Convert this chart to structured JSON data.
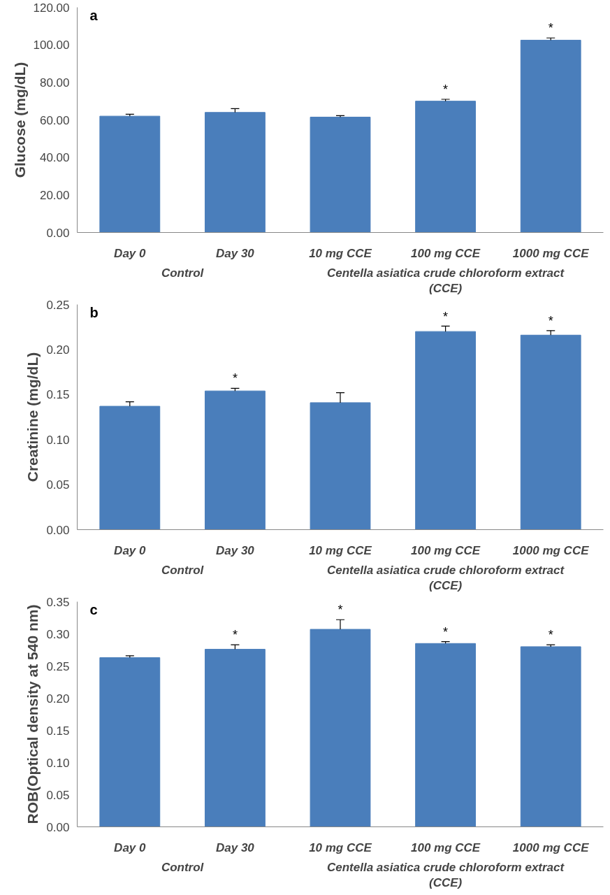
{
  "chart_data": [
    {
      "type": "bar",
      "title": "a",
      "ylabel": "Glucose (mg/dL)",
      "categories": [
        "Day 0",
        "Day 30",
        "10 mg CCE",
        "100 mg CCE",
        "1000 mg CCE"
      ],
      "values": [
        62,
        64,
        61.5,
        70,
        102.5
      ],
      "color": "#4a7ebb",
      "errors": [
        [
          62,
          63
        ],
        [
          64,
          66
        ],
        [
          61.5,
          62.3
        ],
        [
          70,
          71
        ],
        [
          102.5,
          103.7
        ]
      ],
      "ylim": [
        0,
        120
      ],
      "yticks": [
        {
          "value": 0,
          "label": "0.00"
        },
        {
          "value": 20,
          "label": "20.00"
        },
        {
          "value": 40,
          "label": "40.00"
        },
        {
          "value": 60,
          "label": "60.00"
        },
        {
          "value": 80,
          "label": "80.00"
        },
        {
          "value": 100,
          "label": "100.00"
        },
        {
          "value": 120,
          "label": "120.00"
        }
      ],
      "annotations": [
        {
          "text": "*",
          "x": "100 mg CCE",
          "y": 71
        },
        {
          "text": "*",
          "x": "1000 mg CCE",
          "y": 103.7
        },
        "Control",
        "Centella asiatica crude chloroform extract (CCE)"
      ]
    },
    {
      "type": "bar",
      "title": "b",
      "ylabel": "Creatinine (mg/dL)",
      "categories": [
        "Day 0",
        "Day 30",
        "10 mg CCE",
        "100 mg CCE",
        "1000 mg CCE"
      ],
      "values": [
        0.137,
        0.154,
        0.141,
        0.22,
        0.216
      ],
      "color": "#4a7ebb",
      "errors": [
        [
          0.137,
          0.142
        ],
        [
          0.154,
          0.157
        ],
        [
          0.141,
          0.152
        ],
        [
          0.22,
          0.226
        ],
        [
          0.216,
          0.221
        ]
      ],
      "ylim": [
        0,
        0.25
      ],
      "yticks": [
        {
          "value": 0,
          "label": "0.00"
        },
        {
          "value": 0.05,
          "label": "0.05"
        },
        {
          "value": 0.1,
          "label": "0.10"
        },
        {
          "value": 0.15,
          "label": "0.15"
        },
        {
          "value": 0.2,
          "label": "0.20"
        },
        {
          "value": 0.25,
          "label": "0.25"
        }
      ],
      "annotations": [
        {
          "text": "*",
          "x": "Day 30",
          "y": 0.157
        },
        {
          "text": "*",
          "x": "100 mg CCE",
          "y": 0.226
        },
        {
          "text": "*",
          "x": "1000 mg CCE",
          "y": 0.221
        },
        "Control",
        "Centella asiatica crude chloroform extract (CCE)"
      ]
    },
    {
      "type": "bar",
      "title": "c",
      "ylabel": "ROB(Optical density at 540 nm)",
      "categories": [
        "Day 0",
        "Day 30",
        "10 mg CCE",
        "100 mg CCE",
        "1000 mg CCE"
      ],
      "values": [
        0.263,
        0.276,
        0.307,
        0.285,
        0.28
      ],
      "color": "#4a7ebb",
      "errors": [
        [
          0.263,
          0.266
        ],
        [
          0.276,
          0.283
        ],
        [
          0.307,
          0.322
        ],
        [
          0.285,
          0.288
        ],
        [
          0.28,
          0.283
        ]
      ],
      "ylim": [
        0,
        0.35
      ],
      "yticks": [
        {
          "value": 0,
          "label": "0.00"
        },
        {
          "value": 0.05,
          "label": "0.05"
        },
        {
          "value": 0.1,
          "label": "0.10"
        },
        {
          "value": 0.15,
          "label": "0.15"
        },
        {
          "value": 0.2,
          "label": "0.20"
        },
        {
          "value": 0.25,
          "label": "0.25"
        },
        {
          "value": 0.3,
          "label": "0.30"
        },
        {
          "value": 0.35,
          "label": "0.35"
        }
      ],
      "annotations": [
        {
          "text": "*",
          "x": "Day 30",
          "y": 0.283
        },
        {
          "text": "*",
          "x": "10 mg CCE",
          "y": 0.322
        },
        {
          "text": "*",
          "x": "100 mg CCE",
          "y": 0.288
        },
        {
          "text": "*",
          "x": "1000 mg CCE",
          "y": 0.283
        },
        "Control",
        "Centella asiatica crude chloroform extract (CCE)"
      ]
    }
  ]
}
